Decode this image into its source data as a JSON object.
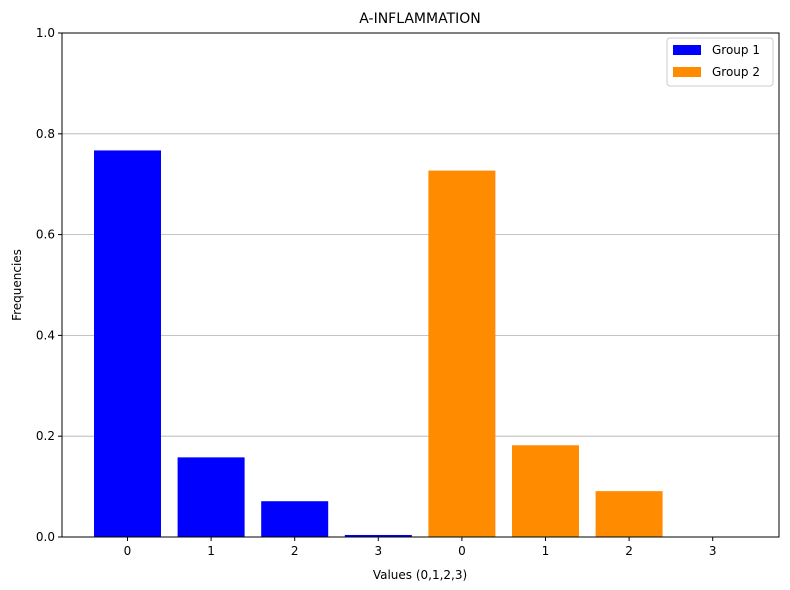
{
  "chart_data": {
    "type": "bar",
    "title": "A-INFLAMMATION",
    "xlabel": "Values (0,1,2,3)",
    "ylabel": "Frequencies",
    "ylim": [
      0,
      1.0
    ],
    "yticks": [
      "0.0",
      "0.2",
      "0.4",
      "0.6",
      "0.8",
      "1.0"
    ],
    "grid": "y",
    "legend_position": "top-right",
    "series": [
      {
        "name": "Group 1",
        "color": "#0000ff",
        "categories": [
          "0",
          "1",
          "2",
          "3"
        ],
        "values": [
          0.767,
          0.158,
          0.071,
          0.004
        ]
      },
      {
        "name": "Group 2",
        "color": "#ff8c00",
        "categories": [
          "0",
          "1",
          "2",
          "3"
        ],
        "values": [
          0.727,
          0.182,
          0.091,
          0.0
        ]
      }
    ]
  }
}
